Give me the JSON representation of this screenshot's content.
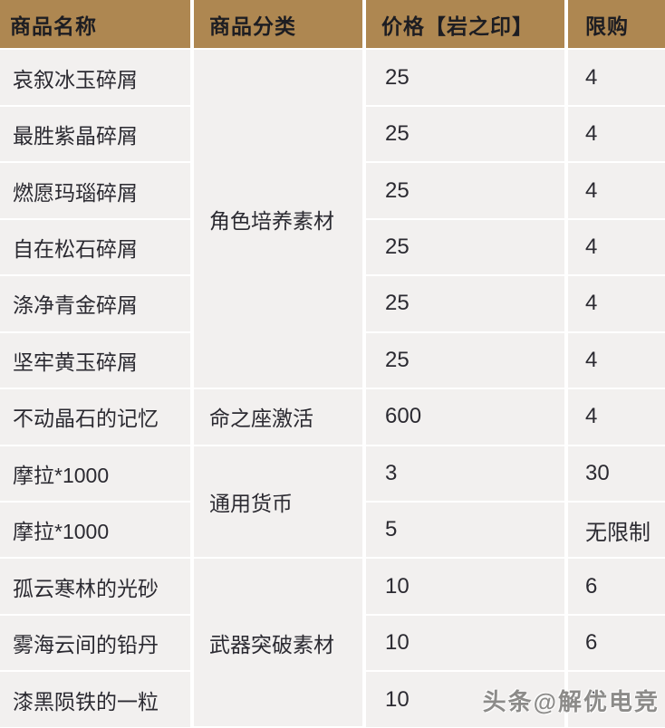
{
  "table": {
    "headers": [
      "商品名称",
      "商品分类",
      "价格【岩之印】",
      "限购"
    ],
    "rows": [
      {
        "name": "哀叙冰玉碎屑",
        "category": "角色培养素材",
        "category_rowspan": 6,
        "price": "25",
        "limit": "4"
      },
      {
        "name": "最胜紫晶碎屑",
        "price": "25",
        "limit": "4"
      },
      {
        "name": "燃愿玛瑙碎屑",
        "price": "25",
        "limit": "4"
      },
      {
        "name": "自在松石碎屑",
        "price": "25",
        "limit": "4"
      },
      {
        "name": "涤净青金碎屑",
        "price": "25",
        "limit": "4"
      },
      {
        "name": "坚牢黄玉碎屑",
        "price": "25",
        "limit": "4"
      },
      {
        "name": "不动晶石的记忆",
        "category": "命之座激活",
        "category_rowspan": 1,
        "price": "600",
        "limit": "4"
      },
      {
        "name": "摩拉*1000",
        "category": "通用货币",
        "category_rowspan": 2,
        "price": "3",
        "limit": "30"
      },
      {
        "name": "摩拉*1000",
        "price": "5",
        "limit": "无限制"
      },
      {
        "name": "孤云寒林的光砂",
        "category": "武器突破素材",
        "category_rowspan": 3,
        "price": "10",
        "limit": "6"
      },
      {
        "name": "雾海云间的铅丹",
        "price": "10",
        "limit": "6"
      },
      {
        "name": "漆黑陨铁的一粒",
        "price": "10",
        "limit": "6"
      }
    ]
  },
  "watermark": "头条@解优电竞",
  "colors": {
    "header_bg": "#AE8751",
    "header_text": "#1d1d22",
    "cell_bg": "#F2F0EF",
    "cell_text": "#2b2a31",
    "grid": "#FFFFFF",
    "watermark_text": "#807E7C"
  }
}
